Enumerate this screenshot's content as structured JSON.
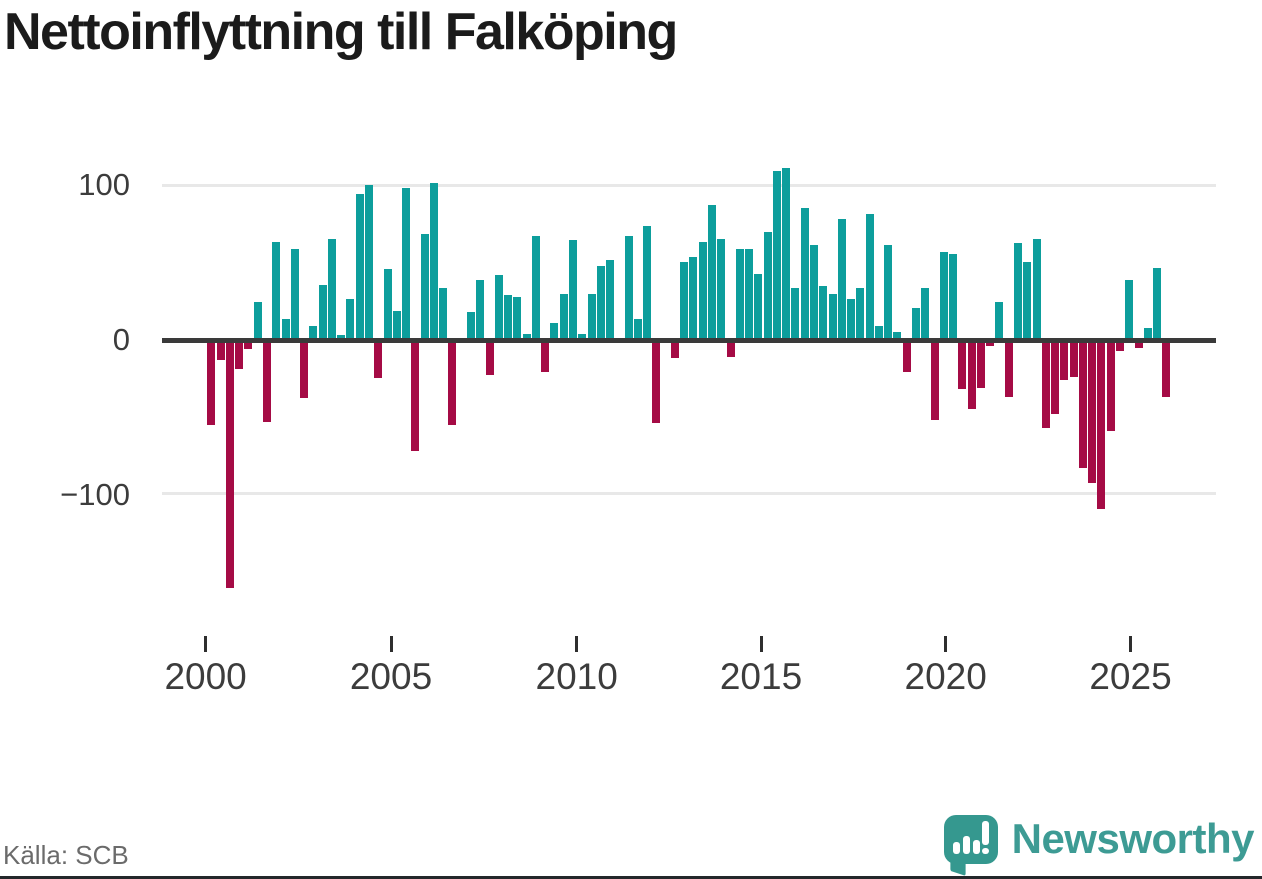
{
  "title": "Nettoinflyttning till Falköping",
  "source": "Källa: SCB",
  "brand": {
    "name": "Newsworthy"
  },
  "colors": {
    "positive": "#0d9e9c",
    "negative": "#a50b45",
    "axis": "#3a3a3a",
    "grid": "#e8e8e8",
    "tick_label": "#3c3c3c",
    "source_text": "#6b6b6b",
    "brand_teal": "#35988f",
    "brand_text": "#3d9b94",
    "title_text": "#1b1b1b"
  },
  "chart_data": {
    "type": "bar",
    "title": "Nettoinflyttning till Falköping",
    "frequency": "quarterly",
    "start": "2000 Q1",
    "end": "2025 Q4",
    "start_year": 2000,
    "quarters_per_year": 4,
    "y_ticks": [
      100,
      0,
      -100
    ],
    "y_tick_labels": [
      "100",
      "0",
      "−100"
    ],
    "x_tick_years": [
      2000,
      2005,
      2010,
      2015,
      2020,
      2025
    ],
    "x_tick_labels": [
      "2000",
      "2005",
      "2010",
      "2015",
      "2020",
      "2025"
    ],
    "ylim": [
      -170,
      115
    ],
    "grid": "horizontal",
    "legend": "none",
    "values": [
      -55,
      -13,
      -161,
      -19,
      -6,
      25,
      -53,
      64,
      14,
      59,
      -38,
      9,
      36,
      66,
      3,
      27,
      95,
      101,
      -25,
      46,
      19,
      99,
      -72,
      69,
      102,
      34,
      -55,
      0,
      18,
      39,
      -23,
      42,
      29,
      28,
      4,
      68,
      -21,
      11,
      30,
      65,
      4,
      30,
      48,
      52,
      0,
      68,
      14,
      74,
      -54,
      0,
      -12,
      51,
      54,
      64,
      88,
      66,
      -11,
      59,
      59,
      43,
      70,
      110,
      112,
      34,
      86,
      62,
      35,
      30,
      79,
      27,
      34,
      82,
      9,
      62,
      5,
      -21,
      21,
      34,
      -52,
      57,
      56,
      -32,
      -45,
      -31,
      -4,
      25,
      -37,
      63,
      51,
      66,
      -57,
      -48,
      -26,
      -24,
      -83,
      -93,
      -110,
      -59,
      -7,
      39,
      -5,
      8,
      47,
      -37
    ]
  }
}
